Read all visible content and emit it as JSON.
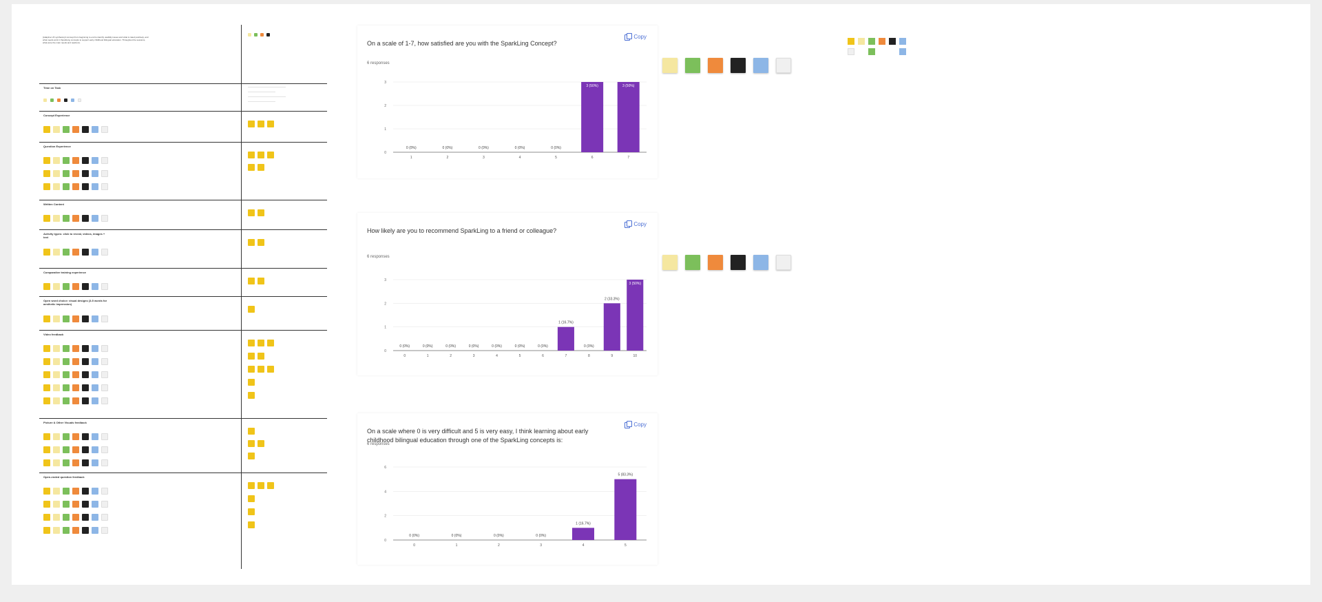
{
  "board": {
    "intro_text": "[Adaptive UX synthesis] A concept from beginning to end to identify usability issues and what is rated positively, and what needs work in SparkLing concepts to support early childhood bilingual education. Throughout the sessions, what were the main needs and reactions.",
    "sections": [
      {
        "title": "Time on Task",
        "notes": [
          [
            "ly",
            "g",
            "o",
            "k",
            "b",
            "w"
          ]
        ],
        "answer_notes": []
      },
      {
        "title": "Concept Experience",
        "notes": [
          [
            "y",
            "ly",
            "g",
            "o",
            "k",
            "b",
            "w"
          ]
        ],
        "answer_notes": [
          [
            "y",
            "y",
            "y"
          ]
        ]
      },
      {
        "title": "Question Experience",
        "notes": [
          [
            "y",
            "ly",
            "g",
            "o",
            "k",
            "b",
            "w"
          ],
          [
            "y",
            "ly",
            "g",
            "o",
            "k",
            "b",
            "w"
          ],
          [
            "y",
            "ly",
            "g",
            "o",
            "k",
            "b",
            "w"
          ]
        ],
        "answer_notes": [
          [
            "y",
            "y",
            "y"
          ],
          [
            "y",
            "y"
          ]
        ]
      },
      {
        "title": "Written Content",
        "notes": [
          [
            "y",
            "ly",
            "g",
            "o",
            "k",
            "b",
            "w"
          ]
        ],
        "answer_notes": [
          [
            "y",
            "y"
          ]
        ]
      },
      {
        "title": "Activity types: click to reveal, videos, images + text",
        "notes": [
          [
            "y",
            "ly",
            "g",
            "o",
            "k",
            "b",
            "w"
          ]
        ],
        "answer_notes": [
          [
            "y",
            "y"
          ]
        ]
      },
      {
        "title": "Comparative training experience",
        "notes": [
          [
            "y",
            "ly",
            "g",
            "o",
            "k",
            "b",
            "w"
          ]
        ],
        "answer_notes": [
          [
            "y",
            "y"
          ]
        ]
      },
      {
        "title": "Open word choice: visual designs (3-5 words for aesthetic impression)",
        "notes": [
          [
            "y",
            "ly",
            "g",
            "o",
            "k",
            "b",
            "w"
          ]
        ],
        "answer_notes": [
          [
            "y"
          ]
        ]
      },
      {
        "title": "Video feedback",
        "notes": [
          [
            "y",
            "ly",
            "g",
            "o",
            "k",
            "b",
            "w"
          ],
          [
            "y",
            "ly",
            "g",
            "o",
            "k",
            "b",
            "w"
          ],
          [
            "y",
            "ly",
            "g",
            "o",
            "k",
            "b",
            "w"
          ],
          [
            "y",
            "ly",
            "g",
            "o",
            "k",
            "b",
            "w"
          ],
          [
            "y",
            "ly",
            "g",
            "o",
            "k",
            "b",
            "w"
          ]
        ],
        "answer_notes": [
          [
            "y",
            "y",
            "y"
          ],
          [
            "y",
            "y"
          ],
          [
            "y",
            "y",
            "y"
          ],
          [
            "y"
          ],
          [
            "y"
          ]
        ]
      },
      {
        "title": "Picture & Other Visuals feedback",
        "notes": [
          [
            "y",
            "ly",
            "g",
            "o",
            "k",
            "b",
            "w"
          ],
          [
            "y",
            "ly",
            "g",
            "o",
            "k",
            "b",
            "w"
          ],
          [
            "y",
            "ly",
            "g",
            "o",
            "k",
            "b",
            "w"
          ]
        ],
        "answer_notes": [
          [
            "y"
          ],
          [
            "y",
            "y"
          ],
          [
            "y"
          ]
        ]
      },
      {
        "title": "Open-ended question feedback",
        "notes": [
          [
            "y",
            "ly",
            "g",
            "o",
            "k",
            "b",
            "w"
          ],
          [
            "y",
            "ly",
            "g",
            "o",
            "k",
            "b",
            "w"
          ],
          [
            "y",
            "ly",
            "g",
            "o",
            "k",
            "b",
            "w"
          ],
          [
            "y",
            "ly",
            "g",
            "o",
            "k",
            "b",
            "w"
          ]
        ],
        "answer_notes": [
          [
            "y",
            "y",
            "y"
          ],
          [
            "y"
          ],
          [
            "y"
          ],
          [
            "y"
          ]
        ]
      }
    ]
  },
  "copy_label": "Copy",
  "chart_data": [
    {
      "type": "bar",
      "title": "On a scale of 1-7, how satisfied are you with the SparkLing Concept?",
      "responses_label": "6 responses",
      "categories": [
        "1",
        "2",
        "3",
        "4",
        "5",
        "6",
        "7"
      ],
      "values": [
        0,
        0,
        0,
        0,
        0,
        3,
        3
      ],
      "labels": [
        "0 (0%)",
        "0 (0%)",
        "0 (0%)",
        "0 (0%)",
        "0 (0%)",
        "3 (50%)",
        "3 (50%)"
      ],
      "yticks": [
        0,
        1,
        2,
        3
      ],
      "ylim": [
        0,
        3
      ],
      "color": "#7b35b6"
    },
    {
      "type": "bar",
      "title": "How likely are you to recommend SparkLing to a friend or colleague?",
      "responses_label": "6 responses",
      "categories": [
        "0",
        "1",
        "2",
        "3",
        "4",
        "5",
        "6",
        "7",
        "8",
        "9",
        "10"
      ],
      "values": [
        0,
        0,
        0,
        0,
        0,
        0,
        0,
        1,
        0,
        2,
        3
      ],
      "labels": [
        "0 (0%)",
        "0 (0%)",
        "0 (0%)",
        "0 (0%)",
        "0 (0%)",
        "0 (0%)",
        "0 (0%)",
        "1 (16.7%)",
        "0 (0%)",
        "2 (33.3%)",
        "3 (50%)"
      ],
      "yticks": [
        0,
        1,
        2,
        3
      ],
      "ylim": [
        0,
        3
      ],
      "color": "#7b35b6"
    },
    {
      "type": "bar",
      "title": "On a scale where 0 is very difficult and 5 is very easy, I think learning about early childhood bilingual education through one of the SparkLing concepts is:",
      "responses_label": "6 responses",
      "categories": [
        "0",
        "1",
        "2",
        "3",
        "4",
        "5"
      ],
      "values": [
        0,
        0,
        0,
        0,
        1,
        5
      ],
      "labels": [
        "0 (0%)",
        "0 (0%)",
        "0 (0%)",
        "0 (0%)",
        "1 (16.7%)",
        "5 (83.3%)"
      ],
      "yticks": [
        0,
        2,
        4,
        6
      ],
      "ylim": [
        0,
        6
      ],
      "color": "#7b35b6"
    }
  ],
  "clusters": [
    {
      "notes": [
        "ly",
        "g",
        "o",
        "k",
        "b",
        "w"
      ]
    },
    {
      "notes": [
        "ly",
        "g",
        "o",
        "k",
        "b",
        "w"
      ]
    }
  ],
  "corner_legend": [
    "y",
    "ly",
    "g",
    "o",
    "k",
    "b",
    "w",
    "g",
    "b"
  ]
}
